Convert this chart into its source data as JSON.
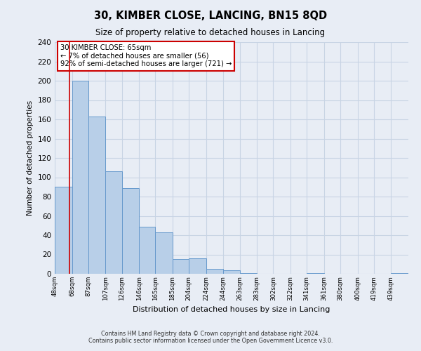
{
  "title": "30, KIMBER CLOSE, LANCING, BN15 8QD",
  "subtitle": "Size of property relative to detached houses in Lancing",
  "xlabel": "Distribution of detached houses by size in Lancing",
  "ylabel": "Number of detached properties",
  "bar_labels": [
    "48sqm",
    "68sqm",
    "87sqm",
    "107sqm",
    "126sqm",
    "146sqm",
    "165sqm",
    "185sqm",
    "204sqm",
    "224sqm",
    "244sqm",
    "263sqm",
    "283sqm",
    "302sqm",
    "322sqm",
    "341sqm",
    "361sqm",
    "380sqm",
    "400sqm",
    "419sqm",
    "439sqm"
  ],
  "bar_values": [
    90,
    200,
    163,
    106,
    89,
    49,
    43,
    15,
    16,
    5,
    4,
    1,
    0,
    0,
    0,
    1,
    0,
    0,
    0,
    0,
    1
  ],
  "bar_color": "#b8cfe8",
  "bar_edge_color": "#6699cc",
  "grid_color": "#c8d4e4",
  "bg_color": "#e8edf5",
  "annotation_text": "30 KIMBER CLOSE: 65sqm\n← 7% of detached houses are smaller (56)\n92% of semi-detached houses are larger (721) →",
  "annotation_box_color": "#ffffff",
  "annotation_border_color": "#cc0000",
  "red_line_x": 65,
  "red_line_color": "#cc0000",
  "ylim": [
    0,
    240
  ],
  "yticks": [
    0,
    20,
    40,
    60,
    80,
    100,
    120,
    140,
    160,
    180,
    200,
    220,
    240
  ],
  "footer": "Contains HM Land Registry data © Crown copyright and database right 2024.\nContains public sector information licensed under the Open Government Licence v3.0.",
  "bin_edges": [
    48,
    68,
    87,
    107,
    126,
    146,
    165,
    185,
    204,
    224,
    244,
    263,
    283,
    302,
    322,
    341,
    361,
    380,
    400,
    419,
    439,
    459
  ]
}
